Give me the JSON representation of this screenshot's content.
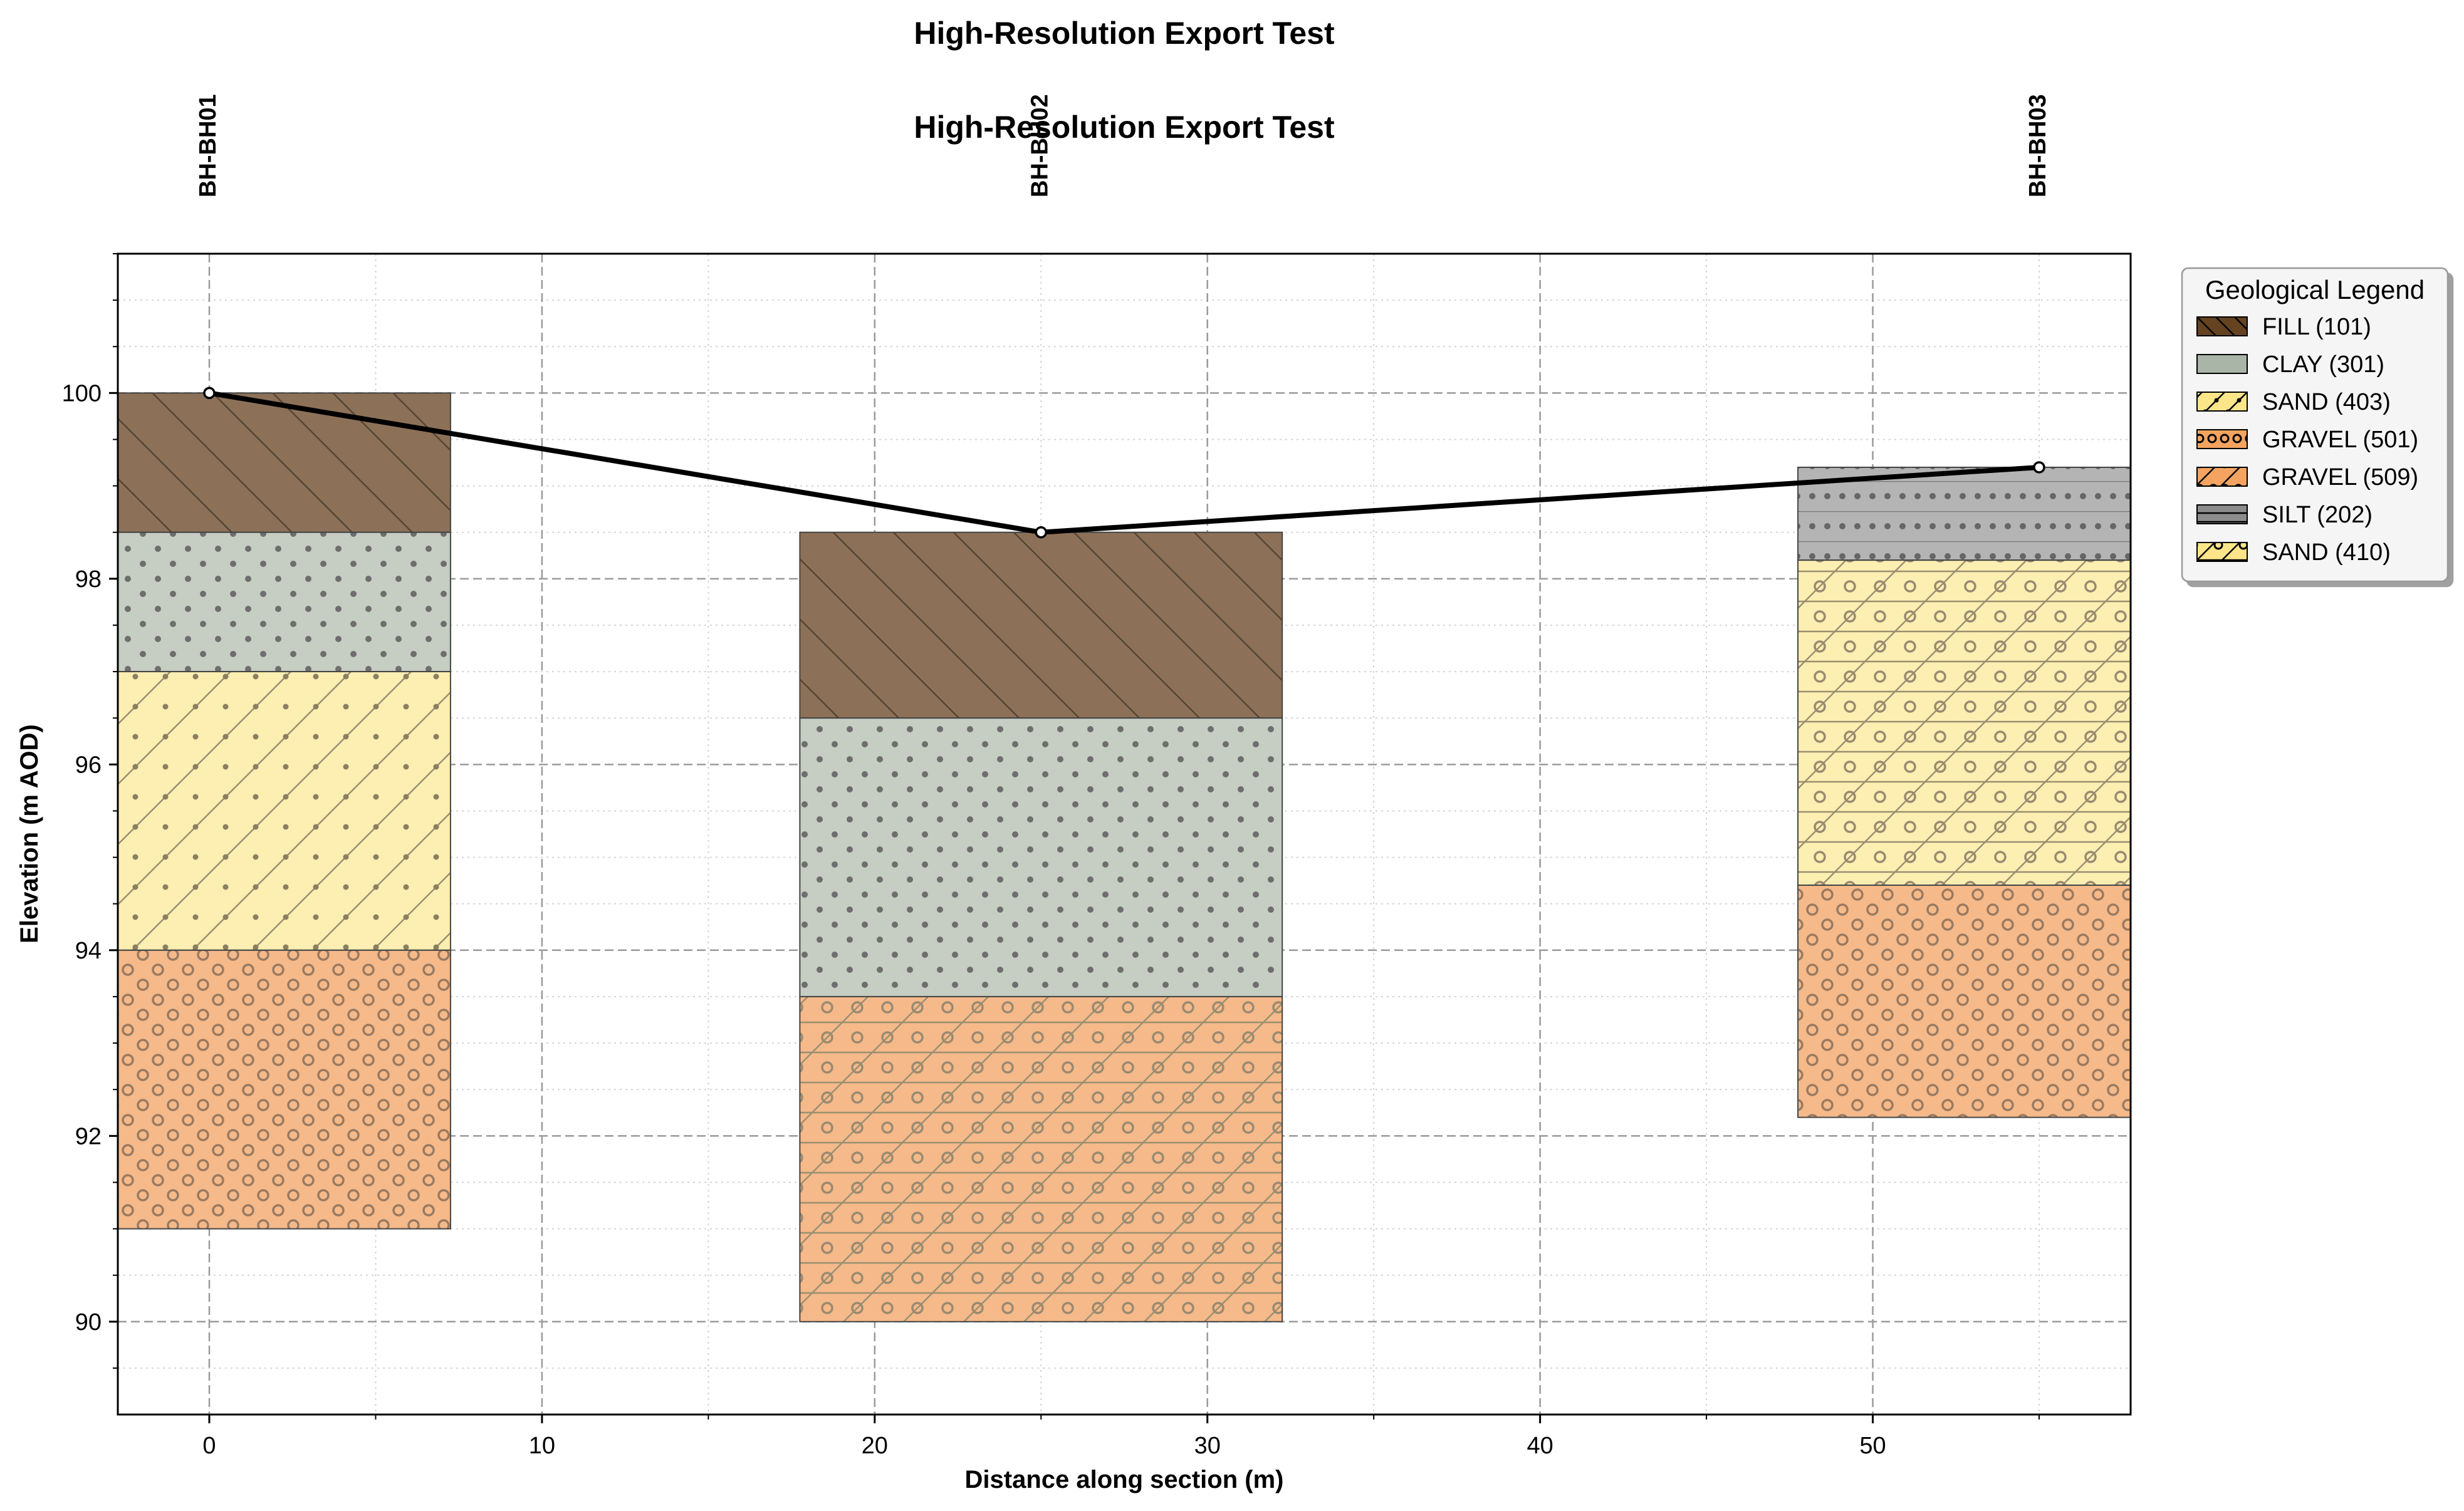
{
  "colors": {
    "FILL": "#8c7158",
    "CLAY": "#c6cdc2",
    "SAND": "#fdeeb2",
    "GRAVEL": "#f5b98a",
    "SILT": "#b4b4b4",
    "legend_fill": "#654321",
    "legend_clay": "#a9b5a6",
    "legend_sand": "#fde68a",
    "legend_gravel": "#f4a460",
    "legend_silt": "#8c8c8c"
  },
  "chart_data": {
    "type": "borehole-section",
    "title": "High-Resolution Export Test",
    "subtitle": "High-Resolution Export Test",
    "xlabel": "Distance along section (m)",
    "ylabel": "Elevation (m AOD)",
    "xlim": [
      -2.75,
      57.75
    ],
    "ylim": [
      89,
      101.5
    ],
    "xticks": [
      0,
      10,
      20,
      30,
      40,
      50
    ],
    "yticks": [
      90,
      92,
      94,
      96,
      98,
      100
    ],
    "grid": true,
    "boreholes": [
      {
        "name": "BH-BH01",
        "x": 0,
        "column_x": [
          -2.75,
          7.25
        ],
        "ground": 100,
        "layers": [
          {
            "code": "101",
            "soil": "FILL",
            "pattern": "hatch-back",
            "top": 100,
            "bottom": 98.5
          },
          {
            "code": "301",
            "soil": "CLAY",
            "pattern": "dots",
            "top": 98.5,
            "bottom": 97
          },
          {
            "code": "403",
            "soil": "SAND",
            "pattern": "dots-slash",
            "top": 97,
            "bottom": 94
          },
          {
            "code": "501",
            "soil": "GRAVEL",
            "pattern": "circles",
            "top": 94,
            "bottom": 91
          }
        ]
      },
      {
        "name": "BH-BH02",
        "x": 25,
        "column_x": [
          17.75,
          32.25
        ],
        "ground": 98.5,
        "layers": [
          {
            "code": "101",
            "soil": "FILL",
            "pattern": "hatch-back",
            "top": 98.5,
            "bottom": 96.5
          },
          {
            "code": "301",
            "soil": "CLAY",
            "pattern": "dots",
            "top": 96.5,
            "bottom": 93.5
          },
          {
            "code": "509",
            "soil": "GRAVEL",
            "pattern": "circles-slash-horiz",
            "top": 93.5,
            "bottom": 90
          }
        ]
      },
      {
        "name": "BH-BH03",
        "x": 55,
        "column_x": [
          47.75,
          57.75
        ],
        "ground": 99.2,
        "layers": [
          {
            "code": "202",
            "soil": "SILT",
            "pattern": "dots-horiz",
            "top": 99.2,
            "bottom": 98.2
          },
          {
            "code": "410",
            "soil": "SAND",
            "pattern": "circles-slash-horiz",
            "top": 98.2,
            "bottom": 94.7
          },
          {
            "code": "501",
            "soil": "GRAVEL",
            "pattern": "circles",
            "top": 94.7,
            "bottom": 92.2
          }
        ]
      }
    ],
    "ground_line": [
      {
        "x": 0,
        "y": 100
      },
      {
        "x": 25,
        "y": 98.5
      },
      {
        "x": 55,
        "y": 99.2
      }
    ],
    "legend": {
      "title": "Geological Legend",
      "placement": "outside-right-top",
      "entries": [
        {
          "label": "FILL (101)",
          "color_key": "legend_fill",
          "pattern": "hatch-back"
        },
        {
          "label": "CLAY (301)",
          "color_key": "legend_clay",
          "pattern": "none"
        },
        {
          "label": "SAND (403)",
          "color_key": "legend_sand",
          "pattern": "dots-slash"
        },
        {
          "label": "GRAVEL (501)",
          "color_key": "legend_gravel",
          "pattern": "circles"
        },
        {
          "label": "GRAVEL (509)",
          "color_key": "legend_gravel",
          "pattern": "circles-slash"
        },
        {
          "label": "SILT (202)",
          "color_key": "legend_silt",
          "pattern": "horiz"
        },
        {
          "label": "SAND (410)",
          "color_key": "legend_sand",
          "pattern": "circles-slash-horiz"
        }
      ]
    }
  }
}
